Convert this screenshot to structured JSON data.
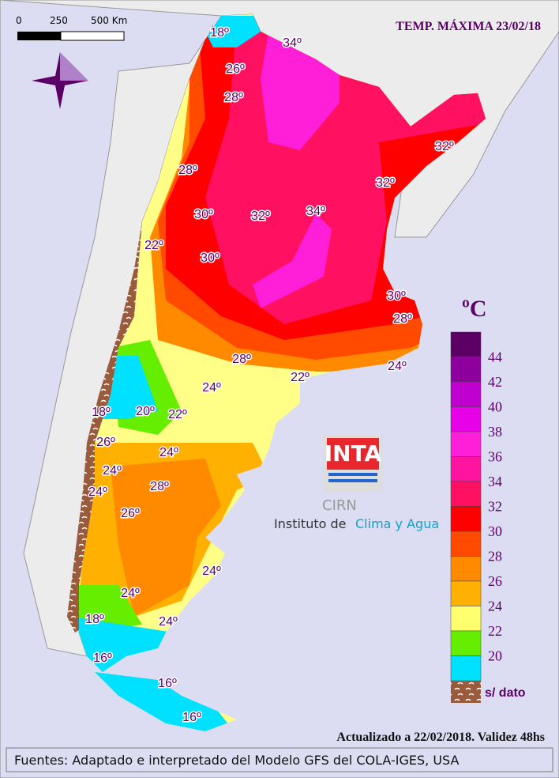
{
  "header": {
    "title": "TEMP. MÁXIMA 23/02/18"
  },
  "scale": {
    "labels": [
      "0",
      "250",
      "500 Km"
    ]
  },
  "map": {
    "labels": [
      "18º",
      "26º",
      "28º",
      "34º",
      "28º",
      "30º",
      "32º",
      "34º",
      "32º",
      "32º",
      "22º",
      "30º",
      "30º",
      "28º",
      "28º",
      "24º",
      "22º",
      "24º",
      "18º",
      "20º",
      "22º",
      "26º",
      "24º",
      "24º",
      "24º",
      "28º",
      "26º",
      "24º",
      "24º",
      "18º",
      "24º",
      "16º",
      "16º",
      "16º"
    ]
  },
  "legend": {
    "unit": "ºC",
    "items": [
      {
        "value": 44,
        "color": "#5c0066"
      },
      {
        "value": 42,
        "color": "#8e009e"
      },
      {
        "value": 40,
        "color": "#c000d0"
      },
      {
        "value": 38,
        "color": "#e800e8"
      },
      {
        "value": 36,
        "color": "#ff1fd8"
      },
      {
        "value": 34,
        "color": "#ff14a0"
      },
      {
        "value": 32,
        "color": "#ff1060"
      },
      {
        "value": 30,
        "color": "#ff0000"
      },
      {
        "value": 28,
        "color": "#ff4a00"
      },
      {
        "value": 26,
        "color": "#ff8a00"
      },
      {
        "value": 24,
        "color": "#ffb000"
      },
      {
        "value": 22,
        "color": "#ffff70"
      },
      {
        "value": 20,
        "color": "#66ee00"
      },
      {
        "value": null,
        "color": "#00e0ff"
      }
    ],
    "nodata": "s/ dato"
  },
  "logo": {
    "brand": "INTA",
    "sub": "CIRN",
    "line1": "Instituto de",
    "line2": "Clima y Agua"
  },
  "footer": {
    "updated": "Actualizado a 22/02/2018. Validez 48hs",
    "sources": "Fuentes: Adaptado e interpretado del Modelo GFS del COLA-IGES, USA"
  }
}
